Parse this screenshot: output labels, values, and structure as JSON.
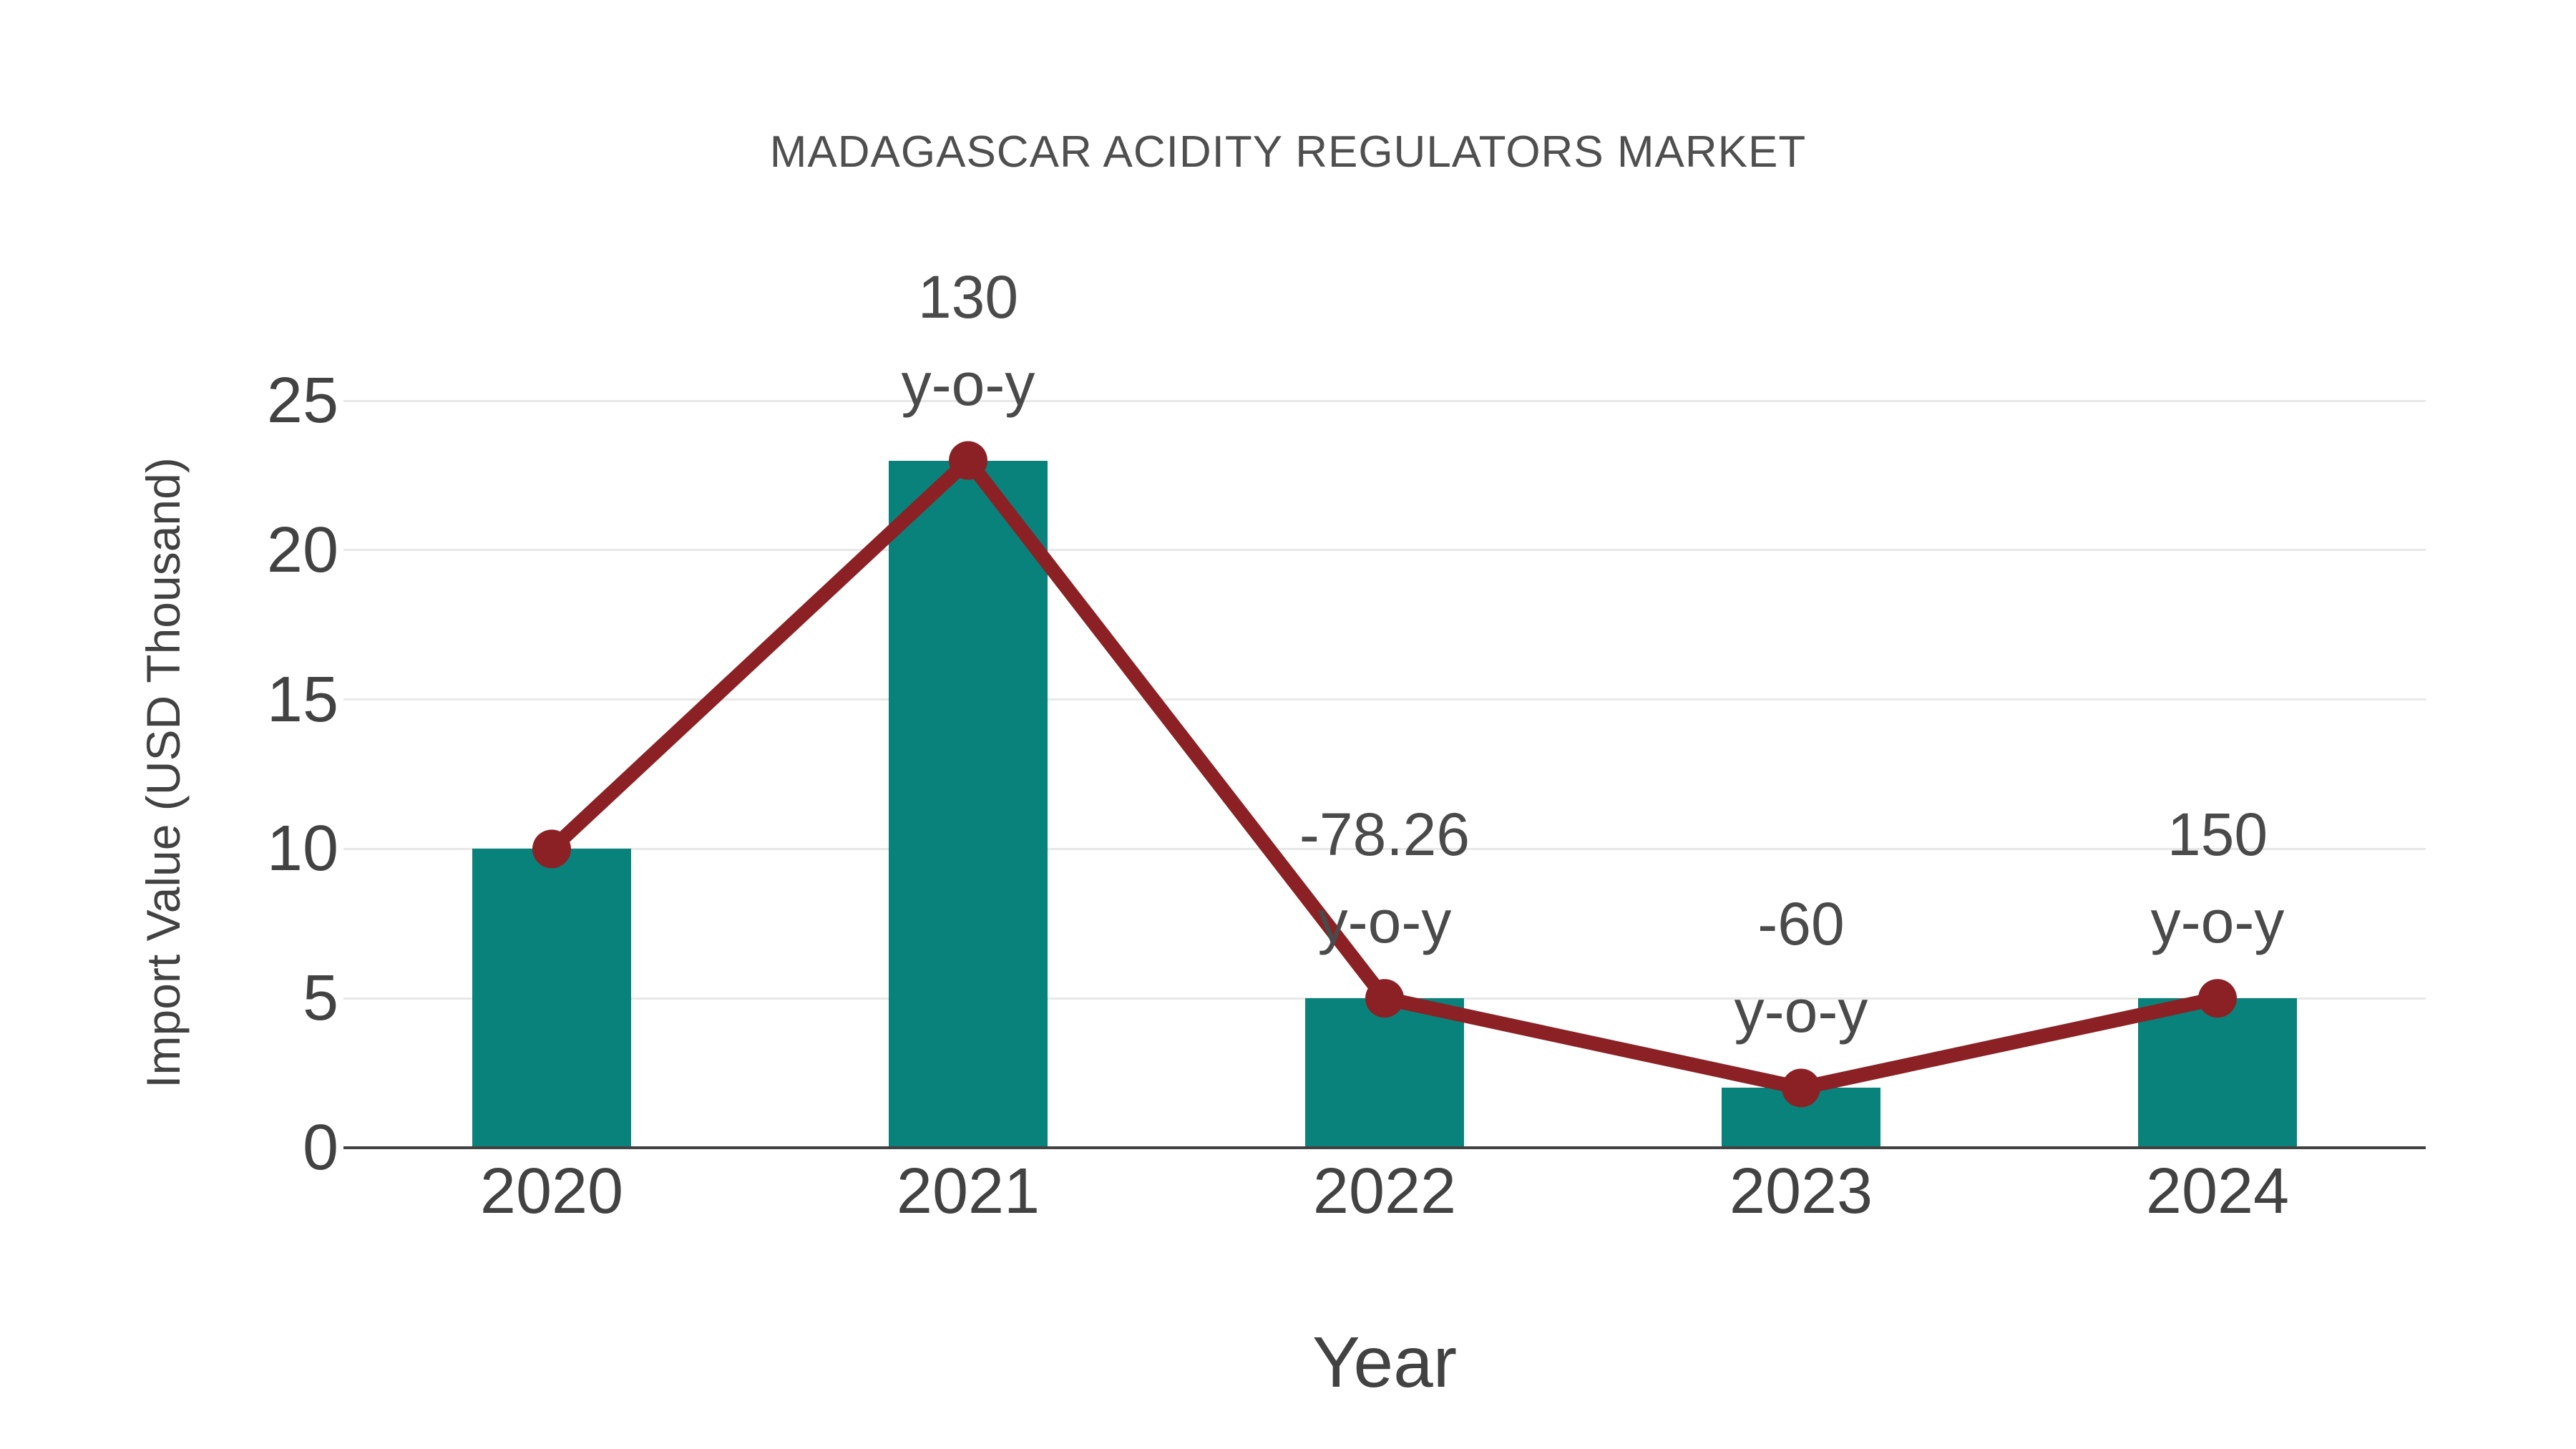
{
  "title": "MADAGASCAR ACIDITY REGULATORS MARKET",
  "y_axis": {
    "label": "Import Value (USD Thousand)",
    "ticks": [
      25,
      20,
      15,
      10,
      5,
      0
    ]
  },
  "x_axis": {
    "label": "Year"
  },
  "colors": {
    "bar": "#0a827c",
    "line": "#8b2124",
    "marker": "#8b2124",
    "grid": "#e8e8e8",
    "axis": "#424242",
    "text": "#424242",
    "title_text": "#4f4f4f"
  },
  "chart_data": {
    "type": "bar",
    "title": "MADAGASCAR ACIDITY REGULATORS MARKET",
    "xlabel": "Year",
    "ylabel": "Import Value (USD Thousand)",
    "categories": [
      "2020",
      "2021",
      "2022",
      "2023",
      "2024"
    ],
    "series": [
      {
        "name": "Import Value (USD Thousand)",
        "type": "bar",
        "values": [
          10,
          23,
          5,
          2,
          5
        ]
      },
      {
        "name": "y-o-y trend line",
        "type": "line",
        "values": [
          10,
          23,
          5,
          2,
          5
        ]
      }
    ],
    "annotations": [
      {
        "category": "2021",
        "line1": "130",
        "line2": "y-o-y"
      },
      {
        "category": "2022",
        "line1": "-78.26",
        "line2": "y-o-y"
      },
      {
        "category": "2023",
        "line1": "-60",
        "line2": "y-o-y"
      },
      {
        "category": "2024",
        "line1": "150",
        "line2": "y-o-y"
      }
    ],
    "ylim": [
      0,
      25
    ],
    "grid": true,
    "legend": "none"
  }
}
